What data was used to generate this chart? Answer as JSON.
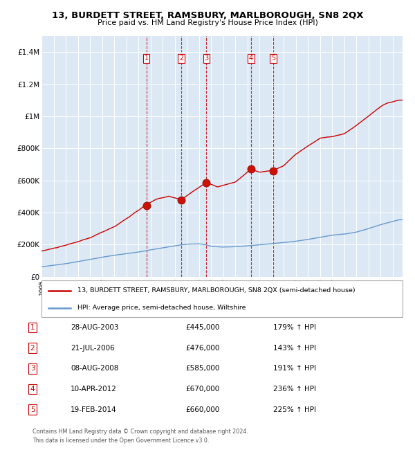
{
  "title": "13, BURDETT STREET, RAMSBURY, MARLBOROUGH, SN8 2QX",
  "subtitle": "Price paid vs. HM Land Registry's House Price Index (HPI)",
  "legend_property": "13, BURDETT STREET, RAMSBURY, MARLBOROUGH, SN8 2QX (semi-detached house)",
  "legend_hpi": "HPI: Average price, semi-detached house, Wiltshire",
  "footer_line1": "Contains HM Land Registry data © Crown copyright and database right 2024.",
  "footer_line2": "This data is licensed under the Open Government Licence v3.0.",
  "property_color": "#cc0000",
  "hpi_color": "#6699cc",
  "background_color": "#dce9f5",
  "transactions": [
    {
      "num": 1,
      "date": "28-AUG-2003",
      "price": 445000,
      "year": 2003.65,
      "pct": "179%",
      "dir": "↑"
    },
    {
      "num": 2,
      "date": "21-JUL-2006",
      "price": 476000,
      "year": 2006.55,
      "pct": "143%",
      "dir": "↑"
    },
    {
      "num": 3,
      "date": "08-AUG-2008",
      "price": 585000,
      "year": 2008.61,
      "pct": "191%",
      "dir": "↑"
    },
    {
      "num": 4,
      "date": "10-APR-2012",
      "price": 670000,
      "year": 2012.28,
      "pct": "236%",
      "dir": "↑"
    },
    {
      "num": 5,
      "date": "19-FEB-2014",
      "price": 660000,
      "year": 2014.13,
      "pct": "225%",
      "dir": "↑"
    }
  ],
  "ylim": [
    0,
    1500000
  ],
  "yticks": [
    0,
    200000,
    400000,
    600000,
    800000,
    1000000,
    1200000,
    1400000
  ],
  "ytick_labels": [
    "£0",
    "£200K",
    "£400K",
    "£600K",
    "£800K",
    "£1M",
    "£1.2M",
    "£1.4M"
  ],
  "xlim_start": 1995,
  "xlim_end": 2024.8,
  "prop_anchors_x": [
    1995,
    1997,
    1999,
    2001,
    2003.65,
    2004.5,
    2005.5,
    2006.55,
    2007.5,
    2008.61,
    2009.5,
    2010,
    2011,
    2012.28,
    2013,
    2014.13,
    2015,
    2016,
    2017,
    2018,
    2019,
    2020,
    2021,
    2022,
    2023,
    2023.5,
    2024.5
  ],
  "prop_anchors_y": [
    160000,
    195000,
    240000,
    310000,
    445000,
    480000,
    500000,
    476000,
    530000,
    585000,
    560000,
    570000,
    590000,
    670000,
    650000,
    660000,
    690000,
    760000,
    810000,
    860000,
    870000,
    890000,
    940000,
    1000000,
    1060000,
    1080000,
    1100000
  ],
  "hpi_anchors_x": [
    1995,
    1997,
    1999,
    2001,
    2003,
    2004,
    2005,
    2006,
    2007,
    2008,
    2008.5,
    2009,
    2010,
    2011,
    2012,
    2013,
    2014,
    2015,
    2016,
    2017,
    2018,
    2019,
    2020,
    2021,
    2022,
    2023,
    2024.5
  ],
  "hpi_anchors_y": [
    62000,
    82000,
    108000,
    135000,
    155000,
    168000,
    180000,
    192000,
    203000,
    205000,
    200000,
    190000,
    185000,
    188000,
    193000,
    200000,
    205000,
    212000,
    220000,
    232000,
    245000,
    258000,
    265000,
    278000,
    300000,
    325000,
    355000
  ]
}
